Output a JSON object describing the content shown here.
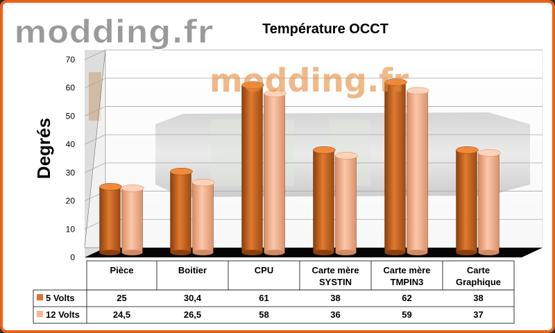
{
  "watermark": {
    "text": "modding.fr"
  },
  "chart_data": {
    "type": "bar",
    "title": "Température OCCT",
    "ylabel": "Degrés",
    "xlabel": "",
    "ylim": [
      0,
      70
    ],
    "yticks": [
      "0",
      "10",
      "20",
      "30",
      "40",
      "50",
      "60",
      "70"
    ],
    "grid": true,
    "categories": [
      [
        "Pièce"
      ],
      [
        "Boitier"
      ],
      [
        "CPU"
      ],
      [
        "Carte mère",
        "SYSTIN"
      ],
      [
        "Carte mère",
        "TMPIN3"
      ],
      [
        "Carte",
        "Graphique"
      ]
    ],
    "series": [
      {
        "name": "5 Volts",
        "values": [
          25,
          30.4,
          61,
          38,
          62,
          38
        ],
        "labels": [
          "25",
          "30,4",
          "61",
          "38",
          "62",
          "38"
        ],
        "color": "#d9732a"
      },
      {
        "name": "12 Volts",
        "values": [
          24.5,
          26.5,
          58,
          36,
          59,
          37
        ],
        "labels": [
          "24,5",
          "26,5",
          "58",
          "36",
          "59",
          "37"
        ],
        "color": "#f7b591"
      }
    ]
  }
}
